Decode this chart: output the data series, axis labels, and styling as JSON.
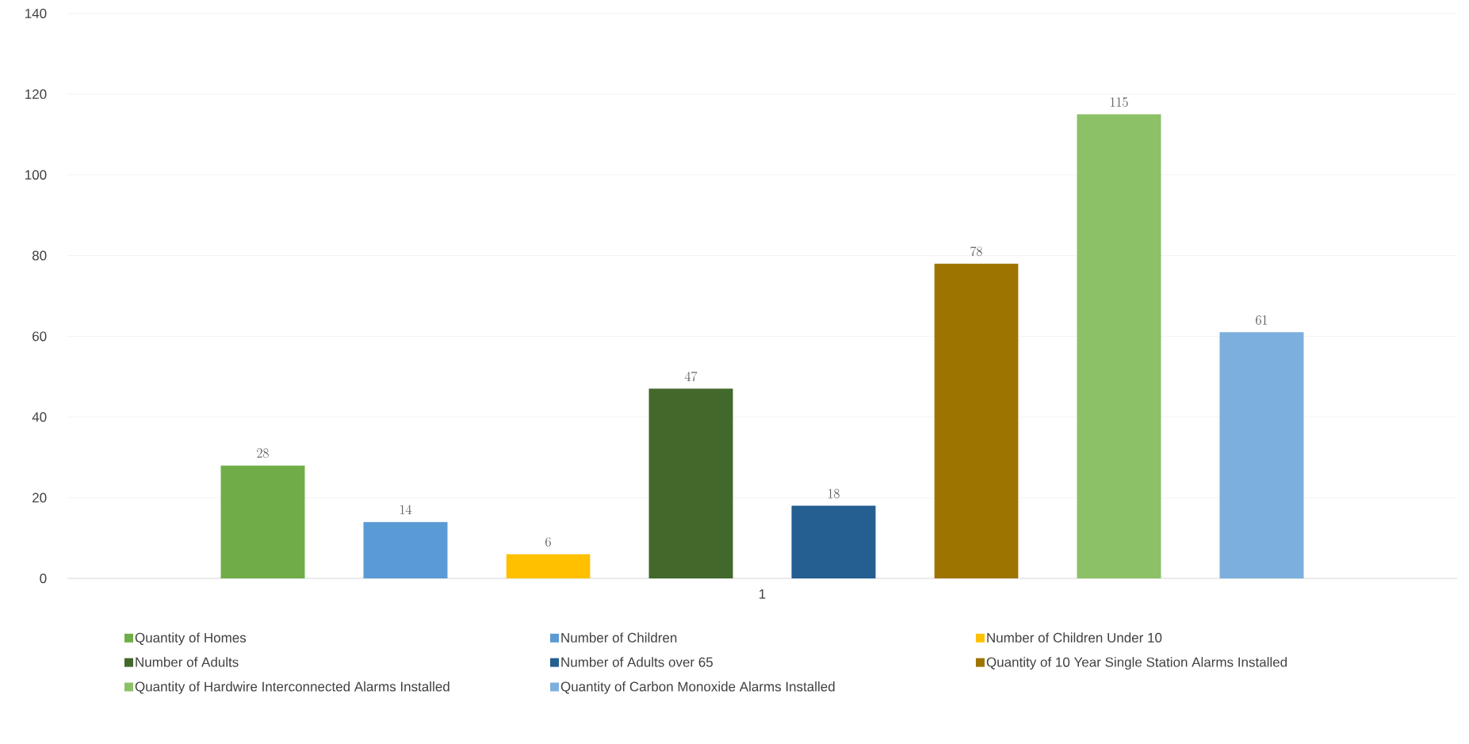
{
  "chart_data": {
    "type": "bar",
    "categories": [
      "1"
    ],
    "series": [
      {
        "name": "Quantity of Homes",
        "color": "#70ad47",
        "values": [
          28
        ]
      },
      {
        "name": "Number of Children",
        "color": "#5b9bd5",
        "values": [
          14
        ]
      },
      {
        "name": "Number of Children Under 10",
        "color": "#ffc000",
        "values": [
          6
        ]
      },
      {
        "name": "Number of Adults",
        "color": "#43682b",
        "values": [
          47
        ]
      },
      {
        "name": "Number of Adults over 65",
        "color": "#255e91",
        "values": [
          18
        ]
      },
      {
        "name": "Quantity of 10 Year Single Station Alarms Installed",
        "color": "#9e7400",
        "values": [
          78
        ]
      },
      {
        "name": "Quantity of Hardwire Interconnected Alarms Installed",
        "color": "#8cc168",
        "values": [
          115
        ]
      },
      {
        "name": "Quantity of Carbon Monoxide Alarms Installed",
        "color": "#7cafdd",
        "values": [
          61
        ]
      }
    ],
    "ylim": [
      0,
      140
    ],
    "yticks": [
      0,
      20,
      40,
      60,
      80,
      100,
      120,
      140
    ],
    "grid": "y",
    "legend": "bottom",
    "data_labels": true
  }
}
